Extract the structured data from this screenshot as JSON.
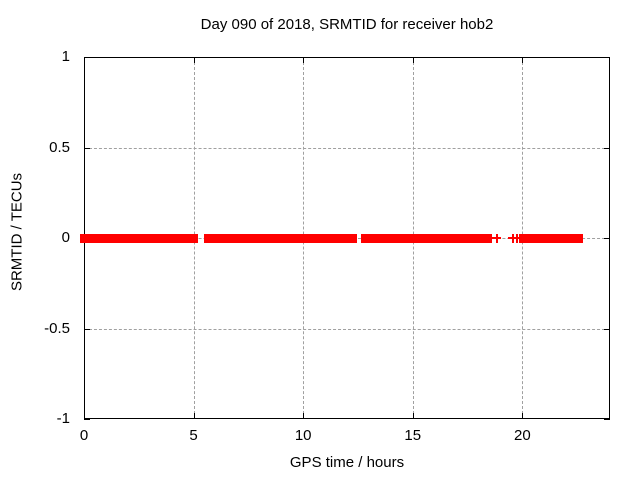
{
  "page": {
    "background": "#ffffff",
    "text_color": "#000000"
  },
  "chart_data": {
    "type": "scatter",
    "marker": "plus",
    "marker_color": "#ff0000",
    "axis_color": "#000000",
    "grid": true,
    "grid_color": "#a0a0a0",
    "title": "Day 090 of 2018, SRMTID for receiver hob2",
    "xlabel": "GPS time / hours",
    "ylabel": "SRMTID / TECUs",
    "xlim": [
      0,
      24
    ],
    "ylim": [
      -1,
      1
    ],
    "xticks": [
      0,
      5,
      10,
      15,
      20
    ],
    "yticks": [
      1,
      0.5,
      0,
      -0.5,
      -1
    ],
    "legend": "none",
    "series_y_value": 0,
    "dense_segments_hours": [
      [
        0,
        5.2
      ],
      [
        5.48,
        12.46
      ],
      [
        12.64,
        18.62
      ],
      [
        19.85,
        22.77
      ]
    ],
    "isolated_points_hours": [
      18.84,
      19.57,
      19.76
    ]
  }
}
